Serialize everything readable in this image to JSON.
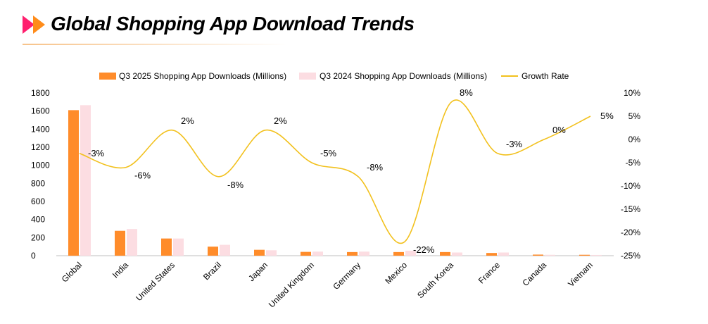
{
  "header": {
    "title": "Global Shopping App Download Trends"
  },
  "colors": {
    "q3_2025": "#FF8C2A",
    "q3_2024": "#FCDDE2",
    "growth": "#F2C11E",
    "mark_left": "#FF1F6E",
    "mark_right": "#FF8C1A",
    "rule": "#F7C38A"
  },
  "icons": [
    "double-chevron-icon"
  ],
  "chart_data": {
    "type": "bar",
    "categories": [
      "Global",
      "India",
      "United States",
      "Brazil",
      "Japan",
      "United Kingdom",
      "Germany",
      "Mexico",
      "South Korea",
      "France",
      "Canada",
      "Vietnam"
    ],
    "series": [
      {
        "name": "Q3 2025 Shopping App Downloads (Millions)",
        "type": "bar",
        "axis": "left",
        "values": [
          1610,
          275,
          190,
          100,
          65,
          42,
          40,
          40,
          40,
          30,
          12,
          10
        ]
      },
      {
        "name": "Q3 2024 Shopping App Downloads (Millions)",
        "type": "bar",
        "axis": "left",
        "values": [
          1665,
          295,
          190,
          120,
          60,
          45,
          45,
          55,
          35,
          35,
          10,
          8
        ]
      },
      {
        "name": "Growth Rate",
        "type": "line",
        "smooth": true,
        "axis": "right",
        "values": [
          -3,
          -6,
          2,
          -8,
          2,
          -5,
          -8,
          -22,
          8,
          -3,
          0,
          5
        ],
        "labels": [
          "-3%",
          "-6%",
          "2%",
          "-8%",
          "2%",
          "-5%",
          "-8%",
          "-22%",
          "8%",
          "-3%",
          "0%",
          "5%"
        ]
      }
    ],
    "left_axis": {
      "min": 0,
      "max": 1800,
      "ticks": [
        "0",
        "200",
        "400",
        "600",
        "800",
        "1000",
        "1200",
        "1400",
        "1600",
        "1800"
      ]
    },
    "right_axis": {
      "min": -25,
      "max": 10,
      "ticks": [
        "-25%",
        "-20%",
        "-15%",
        "-10%",
        "-5%",
        "0%",
        "5%",
        "10%"
      ]
    },
    "grid": false,
    "legend_position": "top"
  }
}
